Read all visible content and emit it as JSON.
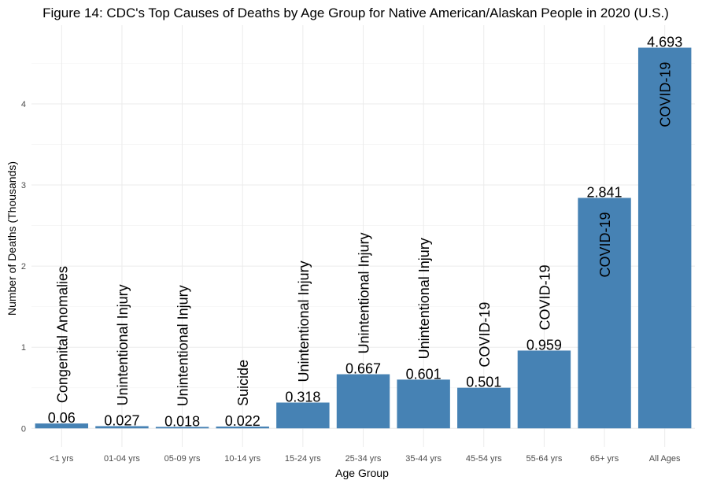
{
  "chart_data": {
    "type": "bar",
    "title": "Figure 14: CDC's Top Causes of Deaths by Age Group for Native American/Alaskan People in 2020 (U.S.)",
    "xlabel": "Age Group",
    "ylabel": "Number of Deaths (Thousands)",
    "categories": [
      "<1 yrs",
      "01-04 yrs",
      "05-09 yrs",
      "10-14 yrs",
      "15-24 yrs",
      "25-34 yrs",
      "35-44 yrs",
      "45-54 yrs",
      "55-64 yrs",
      "65+ yrs",
      "All Ages"
    ],
    "values": [
      0.06,
      0.027,
      0.018,
      0.022,
      0.318,
      0.667,
      0.601,
      0.501,
      0.959,
      2.841,
      4.693
    ],
    "value_labels": [
      "0.06",
      "0.027",
      "0.018",
      "0.022",
      "0.318",
      "0.667",
      "0.601",
      "0.501",
      "0.959",
      "2.841",
      "4.693"
    ],
    "causes": [
      "Congenital Anomalies",
      "Unintentional Injury",
      "Unintentional Injury",
      "Suicide",
      "Unintentional Injury",
      "Unintentional Injury",
      "Unintentional Injury",
      "COVID-19",
      "COVID-19",
      "COVID-19",
      "COVID-19"
    ],
    "yticks": [
      0,
      1,
      2,
      3,
      4
    ],
    "ylim": [
      -0.23,
      4.97
    ],
    "grid": true,
    "bar_color": "#4682b4",
    "legend": "none"
  }
}
